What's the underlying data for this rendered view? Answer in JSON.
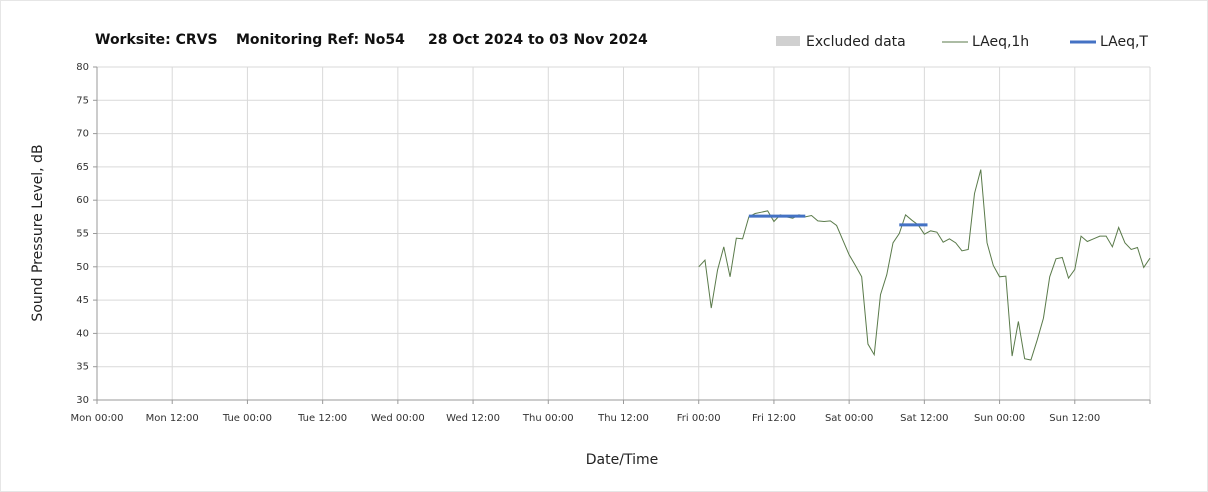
{
  "chart_data": {
    "type": "line",
    "title": [
      "Worksite: CRVS",
      "Monitoring Ref: No54",
      "28 Oct 2024 to 03 Nov 2024"
    ],
    "x_label": "Date/Time",
    "y_label": "Sound Pressure Level, dB",
    "xlim": [
      0,
      168
    ],
    "xticks": [
      {
        "value": 0,
        "label": "Mon 00:00"
      },
      {
        "value": 12,
        "label": "Mon 12:00"
      },
      {
        "value": 24,
        "label": "Tue 00:00"
      },
      {
        "value": 36,
        "label": "Tue 12:00"
      },
      {
        "value": 48,
        "label": "Wed 00:00"
      },
      {
        "value": 60,
        "label": "Wed 12:00"
      },
      {
        "value": 72,
        "label": "Thu 00:00"
      },
      {
        "value": 84,
        "label": "Thu 12:00"
      },
      {
        "value": 96,
        "label": "Fri 00:00"
      },
      {
        "value": 108,
        "label": "Fri 12:00"
      },
      {
        "value": 120,
        "label": "Sat 00:00"
      },
      {
        "value": 132,
        "label": "Sat 12:00"
      },
      {
        "value": 144,
        "label": "Sun 00:00"
      },
      {
        "value": 156,
        "label": "Sun 12:00"
      },
      {
        "value": 168,
        "label": ""
      }
    ],
    "ylim": [
      30,
      80
    ],
    "yticks": [
      30,
      35,
      40,
      45,
      50,
      55,
      60,
      65,
      70,
      75,
      80
    ],
    "grid": true,
    "legend": "top-right",
    "excluded": {
      "name": "Excluded data",
      "color": "#d0d0d0"
    },
    "series": [
      {
        "name": "LAeq,1h",
        "color": "#5a7a4a",
        "width": 1,
        "x": [
          96,
          97,
          98,
          99,
          100,
          101,
          102,
          103,
          104,
          105,
          106,
          107,
          108,
          109,
          110,
          111,
          112,
          113,
          114,
          115,
          116,
          117,
          118,
          119,
          120,
          121,
          122,
          123,
          124,
          125,
          126,
          127,
          128,
          129,
          130,
          131,
          132,
          133,
          134,
          135,
          136,
          137,
          138,
          139,
          140,
          141,
          142,
          143,
          144,
          145,
          146,
          147,
          148,
          149,
          150,
          151,
          152,
          153,
          154,
          155,
          156,
          157,
          158,
          159,
          160,
          161,
          162,
          163,
          164,
          165,
          166,
          167,
          168
        ],
        "values": [
          50,
          51,
          43.8,
          49.5,
          53,
          48.5,
          54.3,
          54.2,
          57.5,
          58,
          58.2,
          58.4,
          56.8,
          57.8,
          57.5,
          57.3,
          57.8,
          57.5,
          57.7,
          56.9,
          56.8,
          56.9,
          56.2,
          54,
          51.8,
          50.2,
          48.5,
          38.4,
          36.8,
          45.8,
          48.8,
          53.6,
          55,
          57.8,
          57,
          56.3,
          54.9,
          55.4,
          55.2,
          53.7,
          54.2,
          53.6,
          52.4,
          52.6,
          61,
          64.6,
          53.6,
          50.2,
          48.5,
          48.6,
          36.6,
          41.8,
          36.2,
          36,
          39,
          42.3,
          48.5,
          51.2,
          51.4,
          48.3,
          49.6,
          54.6,
          53.8,
          54.2,
          54.6,
          54.6,
          53,
          55.9,
          53.6,
          52.6,
          52.9,
          49.9,
          51.3
        ]
      },
      {
        "name": "LAeq,T",
        "color": "#4472c4",
        "width": 3,
        "x": [
          104,
          113,
          120,
          128,
          132.5
        ],
        "values": [
          57.6,
          57.6,
          null,
          56.3,
          56.3
        ]
      }
    ]
  }
}
